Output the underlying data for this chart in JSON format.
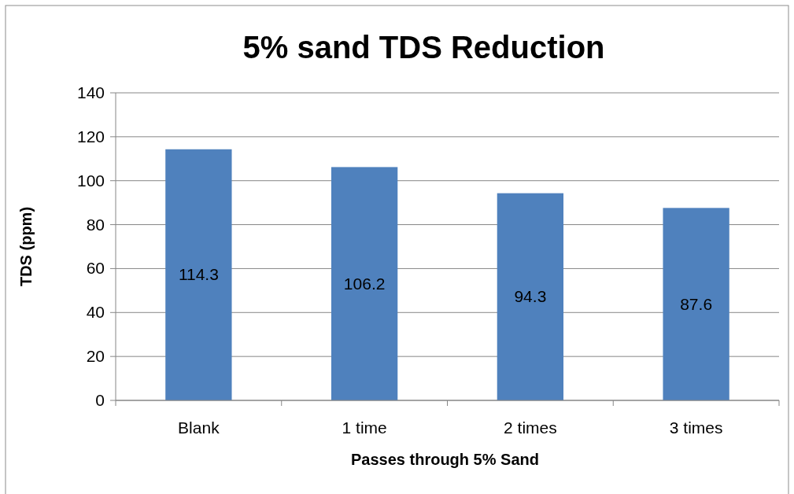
{
  "chart_data": {
    "type": "bar",
    "title": "5% sand TDS Reduction",
    "xlabel": "Passes through 5% Sand",
    "ylabel": "TDS (ppm)",
    "categories": [
      "Blank",
      "1 time",
      "2 times",
      "3 times"
    ],
    "values": [
      114.3,
      106.2,
      94.3,
      87.6
    ],
    "color": "#4f81bd",
    "ylim": [
      0,
      140
    ],
    "yticks": [
      0,
      20,
      40,
      60,
      80,
      100,
      120,
      140
    ],
    "grid": "y",
    "data_labels": true
  }
}
